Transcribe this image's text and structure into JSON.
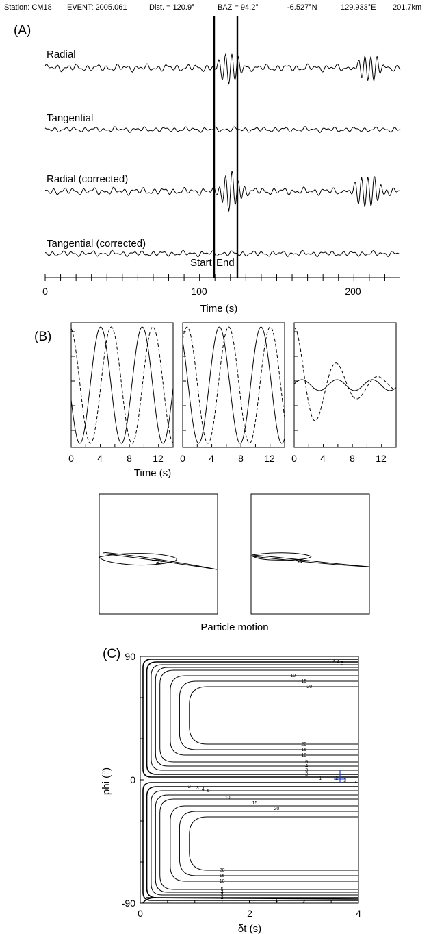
{
  "header": {
    "station": "Station: CM18",
    "event": "EVENT: 2005.061",
    "dist": "Dist. = 120.9°",
    "baz": "BAZ = 94.2°",
    "lat": "-6.527°N",
    "lon": "129.933°E",
    "depth": "201.7km"
  },
  "panelA": {
    "letter": "(A)",
    "traces": [
      "Radial",
      "Tangential",
      "Radial (corrected)",
      "Tangential (corrected)"
    ],
    "start_label": "Start",
    "end_label": "End",
    "xlabel": "Time (s)",
    "xticks": [
      "0",
      "100",
      "200"
    ]
  },
  "panelB": {
    "letter": "(B)",
    "xlabel": "Time (s)",
    "xticks": [
      "0",
      "4",
      "8",
      "12"
    ],
    "pm_label": "Particle motion"
  },
  "panelC": {
    "letter": "(C)",
    "xlabel": "δt (s)",
    "ylabel": "phi (°)",
    "xticks": [
      "0",
      "2",
      "4"
    ],
    "yticks": [
      "90",
      "0",
      "-90"
    ],
    "contour_levels": [
      "1",
      "2",
      "3",
      "4",
      "5",
      "10",
      "15",
      "20"
    ]
  },
  "chart_data": [
    {
      "type": "line",
      "title": "(A)",
      "xlabel": "Time (s)",
      "xlim": [
        0,
        230
      ],
      "series": [
        {
          "name": "Radial"
        },
        {
          "name": "Tangential"
        },
        {
          "name": "Radial (corrected)"
        },
        {
          "name": "Tangential (corrected)"
        }
      ],
      "window": {
        "start": 110,
        "end": 124
      },
      "annotations": [
        "Start",
        "End"
      ]
    },
    {
      "type": "line",
      "title": "(B)",
      "xlabel": "Time (s)",
      "xlim": [
        0,
        14
      ],
      "subplots": 3
    },
    {
      "type": "line",
      "title": "Particle motion",
      "subplots": 2
    },
    {
      "type": "heatmap",
      "title": "(C)",
      "xlabel": "δt (s)",
      "ylabel": "phi (°)",
      "xlim": [
        0,
        4
      ],
      "ylim": [
        -90,
        90
      ],
      "contour_levels": [
        1,
        2,
        3,
        4,
        5,
        10,
        15,
        20
      ],
      "best_fit": {
        "dt": 3.65,
        "phi": 8
      },
      "colors": {
        "best_fit_marker": "#1f3fbf"
      }
    }
  ]
}
